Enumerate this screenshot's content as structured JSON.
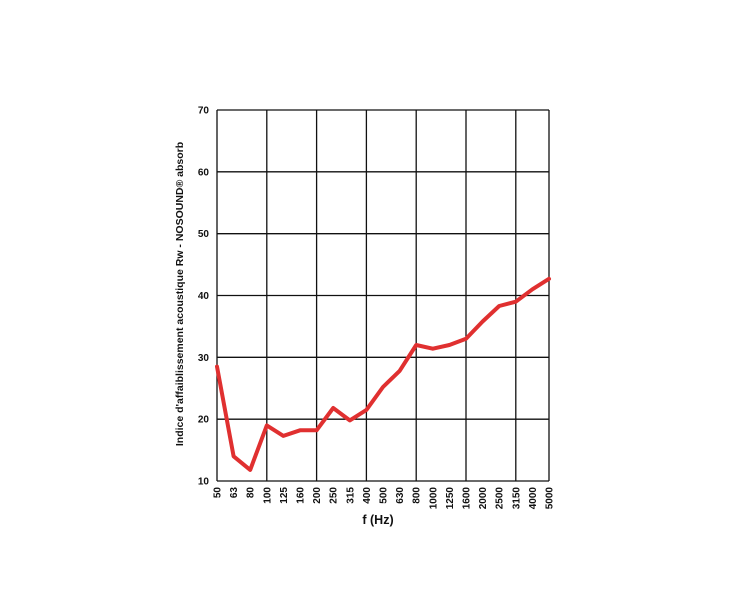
{
  "chart_data": {
    "type": "line",
    "title": "",
    "xlabel": "f (Hz)",
    "ylabel": "Indice d'affaiblissement acoustique Rw - NOSOUND® absorb",
    "categories": [
      "50",
      "63",
      "80",
      "100",
      "125",
      "160",
      "200",
      "250",
      "315",
      "400",
      "500",
      "630",
      "800",
      "1000",
      "1250",
      "1600",
      "2000",
      "2500",
      "3150",
      "4000",
      "5000"
    ],
    "ylim": [
      10,
      70
    ],
    "yticks": [
      10,
      20,
      30,
      40,
      50,
      60,
      70
    ],
    "grid": true,
    "series": [
      {
        "values": [
          28.5,
          14,
          11.8,
          19,
          17.3,
          18.2,
          18.2,
          21.8,
          19.8,
          21.5,
          25.2,
          27.8,
          32,
          31.4,
          32,
          33,
          35.8,
          38.3,
          39,
          41,
          42.7
        ],
        "color": "#e03030"
      }
    ]
  }
}
